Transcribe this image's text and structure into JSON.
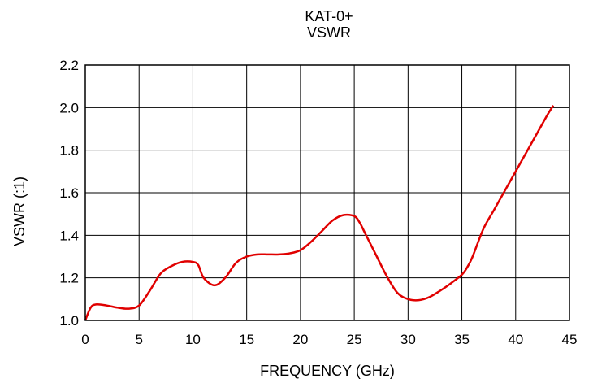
{
  "chart_data": {
    "type": "line",
    "title": "KAT-0+",
    "subtitle": "VSWR",
    "xlabel": "FREQUENCY (GHz)",
    "ylabel": "VSWR (:1)",
    "xlim": [
      0,
      45
    ],
    "ylim": [
      1.0,
      2.2
    ],
    "xticks": [
      "0",
      "5",
      "10",
      "15",
      "20",
      "25",
      "30",
      "35",
      "40",
      "45"
    ],
    "yticks": [
      "1.0",
      "1.2",
      "1.4",
      "1.6",
      "1.8",
      "2.0",
      "2.2"
    ],
    "grid": true,
    "series": [
      {
        "color": "#e00000",
        "x": [
          0,
          0.5,
          1,
          2,
          3,
          4,
          5,
          6,
          7,
          8,
          9,
          10,
          10.5,
          11,
          12,
          13,
          14,
          15,
          16,
          17,
          18,
          19,
          20,
          21,
          22,
          23,
          24,
          25,
          25.5,
          26,
          27,
          28,
          29,
          30,
          31,
          32,
          33,
          34,
          35,
          35.5,
          36,
          37,
          38,
          39,
          40,
          41,
          42,
          43,
          43.5
        ],
        "y": [
          1.0,
          1.06,
          1.075,
          1.07,
          1.06,
          1.055,
          1.07,
          1.14,
          1.22,
          1.255,
          1.275,
          1.275,
          1.26,
          1.2,
          1.165,
          1.2,
          1.27,
          1.3,
          1.31,
          1.31,
          1.31,
          1.315,
          1.33,
          1.37,
          1.42,
          1.47,
          1.495,
          1.49,
          1.46,
          1.41,
          1.31,
          1.21,
          1.13,
          1.1,
          1.095,
          1.11,
          1.14,
          1.175,
          1.215,
          1.25,
          1.3,
          1.43,
          1.52,
          1.61,
          1.7,
          1.79,
          1.88,
          1.97,
          2.01
        ]
      }
    ]
  }
}
